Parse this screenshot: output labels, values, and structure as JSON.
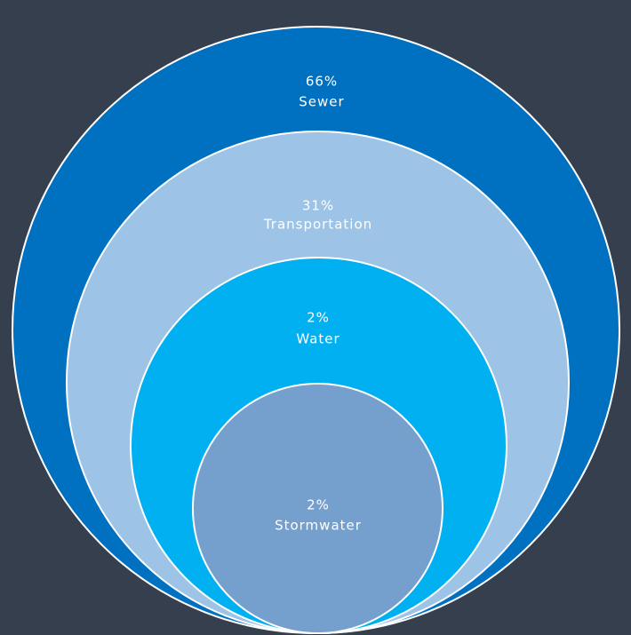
{
  "nodes": [
    {
      "percent": "66%",
      "label": "Sewer"
    },
    {
      "percent": "31%",
      "label": "Transportation"
    },
    {
      "percent": "2%",
      "label": "Water"
    },
    {
      "percent": "2%",
      "label": "Stormwater"
    }
  ]
}
